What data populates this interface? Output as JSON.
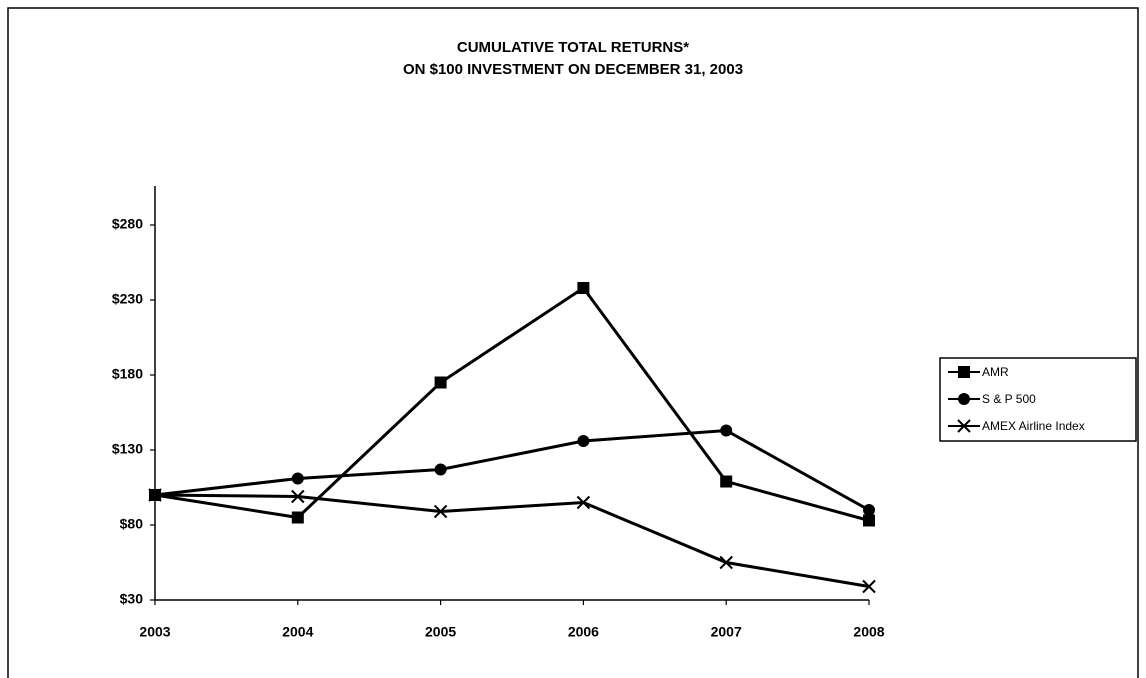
{
  "chart_data": {
    "type": "line",
    "title": "CUMULATIVE TOTAL RETURNS*",
    "subtitle": "ON $100 INVESTMENT ON DECEMBER 31, 2003",
    "categories": [
      "2003",
      "2004",
      "2005",
      "2006",
      "2007",
      "2008"
    ],
    "series": [
      {
        "name": "AMR",
        "color": "#000000",
        "marker": "square",
        "values": [
          100,
          85,
          175,
          238,
          109,
          83
        ]
      },
      {
        "name": "S & P 500",
        "color": "#000000",
        "marker": "circle",
        "values": [
          100,
          111,
          117,
          136,
          143,
          90
        ]
      },
      {
        "name": "AMEX Airline Index",
        "color": "#000000",
        "marker": "x",
        "values": [
          100,
          99,
          89,
          95,
          55,
          39
        ]
      }
    ],
    "ylim": [
      30,
      306
    ],
    "yticks": [
      {
        "value": 30,
        "label": "$30"
      },
      {
        "value": 80,
        "label": "$80"
      },
      {
        "value": 130,
        "label": "$130"
      },
      {
        "value": 180,
        "label": "$180"
      },
      {
        "value": 230,
        "label": "$230"
      },
      {
        "value": 280,
        "label": "$280"
      }
    ],
    "grid": false,
    "legend": "right"
  }
}
